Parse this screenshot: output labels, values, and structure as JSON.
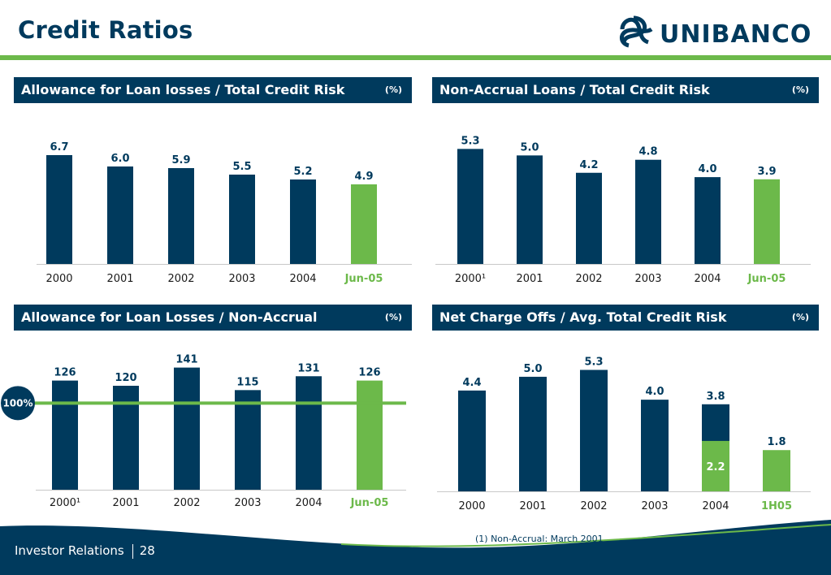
{
  "header": {
    "title": "Credit Ratios",
    "brand": "UNIBANCO"
  },
  "colors": {
    "navy": "#003a5d",
    "green": "#6cb94a",
    "accent_green": "#5aaa3c"
  },
  "panels": [
    {
      "title": "Allowance for Loan losses / Total Credit Risk",
      "unit": "(%)"
    },
    {
      "title": "Non-Accrual Loans / Total Credit Risk",
      "unit": "(%)"
    },
    {
      "title": "Allowance for Loan Losses / Non-Accrual",
      "unit": "(%)"
    },
    {
      "title": "Net Charge Offs / Avg. Total Credit Risk",
      "unit": "(%)"
    }
  ],
  "chart_data": [
    {
      "type": "bar",
      "categories": [
        "2000",
        "2001",
        "2002",
        "2003",
        "2004",
        "Jun-05"
      ],
      "values": [
        6.7,
        6.0,
        5.9,
        5.5,
        5.2,
        4.9
      ],
      "labels": [
        "6.7",
        "6.0",
        "5.9",
        "5.5",
        "5.2",
        "4.9"
      ],
      "highlight_last": true,
      "ylim": [
        0,
        7.5
      ]
    },
    {
      "type": "bar",
      "categories": [
        "2000¹",
        "2001",
        "2002",
        "2003",
        "2004",
        "Jun-05"
      ],
      "values": [
        5.3,
        5.0,
        4.2,
        4.8,
        4.0,
        3.9
      ],
      "labels": [
        "5.3",
        "5.0",
        "4.2",
        "4.8",
        "4.0",
        "3.9"
      ],
      "highlight_last": true,
      "ylim": [
        0,
        5.8
      ]
    },
    {
      "type": "bar",
      "categories": [
        "2000¹",
        "2001",
        "2002",
        "2003",
        "2004",
        "Jun-05"
      ],
      "values": [
        126,
        120,
        141,
        115,
        131,
        126
      ],
      "labels": [
        "126",
        "120",
        "141",
        "115",
        "131",
        "126"
      ],
      "highlight_last": true,
      "ylim": [
        0,
        150
      ],
      "reference_line": {
        "value": 100,
        "label": "100%"
      }
    },
    {
      "type": "bar",
      "categories": [
        "2000",
        "2001",
        "2002",
        "2003",
        "2004",
        "1H05"
      ],
      "values": [
        4.4,
        5.0,
        5.3,
        4.0,
        3.8,
        1.8
      ],
      "labels": [
        "4.4",
        "5.0",
        "5.3",
        "4.0",
        "3.8",
        "1.8"
      ],
      "highlight_last": true,
      "ylim": [
        0,
        5.6
      ],
      "inner_segment": {
        "category": "2004",
        "value": 2.2,
        "label": "2.2"
      }
    }
  ],
  "footer": {
    "section": "Investor Relations",
    "page": "28",
    "footnote": "(1) Non-Accrual: March 2001"
  }
}
